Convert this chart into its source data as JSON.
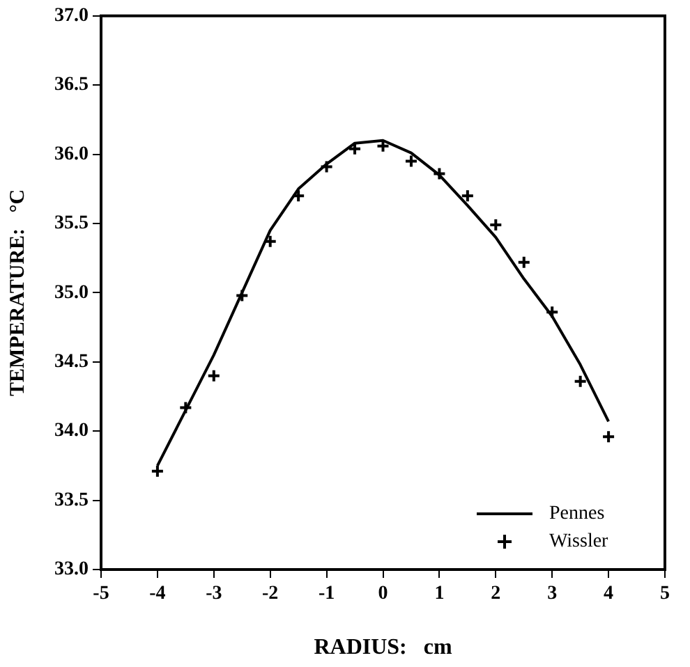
{
  "chart_data": {
    "type": "line",
    "xlabel": "RADIUS:   cm",
    "ylabel": "TEMPERATURE:   °C",
    "xlim": [
      -5,
      5
    ],
    "xticks": [
      -5,
      -4,
      -3,
      -2,
      -1,
      0,
      1,
      2,
      3,
      4,
      5
    ],
    "ylim": [
      33,
      37
    ],
    "yticks": [
      {
        "value": 33,
        "label": "33.0"
      },
      {
        "value": 33.5,
        "label": "33.5"
      },
      {
        "value": 34,
        "label": "34.0"
      },
      {
        "value": 34.5,
        "label": "34.5"
      },
      {
        "value": 35,
        "label": "35.0"
      },
      {
        "value": 35.5,
        "label": "35.5"
      },
      {
        "value": 36,
        "label": "36.0"
      },
      {
        "value": 36.5,
        "label": "36.5"
      },
      {
        "value": 37,
        "label": "37.0"
      }
    ],
    "grid": false,
    "legend": "bottom right",
    "x": [
      -4,
      -3.5,
      -3,
      -2.5,
      -2,
      -1.5,
      -1,
      -0.5,
      0,
      0.5,
      1,
      1.5,
      2,
      2.5,
      3,
      3.5,
      4
    ],
    "series": [
      {
        "name": "Pennes",
        "type": "line",
        "marker": "none",
        "line_style": "solid",
        "color": "#000000",
        "values": [
          33.75,
          34.15,
          34.55,
          35.0,
          35.45,
          35.75,
          35.93,
          36.08,
          36.1,
          36.01,
          35.85,
          35.63,
          35.4,
          35.1,
          34.83,
          34.48,
          34.07
        ]
      },
      {
        "name": "Wissler",
        "type": "scatter",
        "marker": "cross",
        "color": "#000000",
        "values": [
          33.71,
          34.17,
          34.4,
          34.98,
          35.37,
          35.7,
          35.91,
          36.04,
          36.06,
          35.95,
          35.86,
          35.7,
          35.49,
          35.22,
          34.86,
          34.36,
          33.96
        ]
      }
    ]
  }
}
